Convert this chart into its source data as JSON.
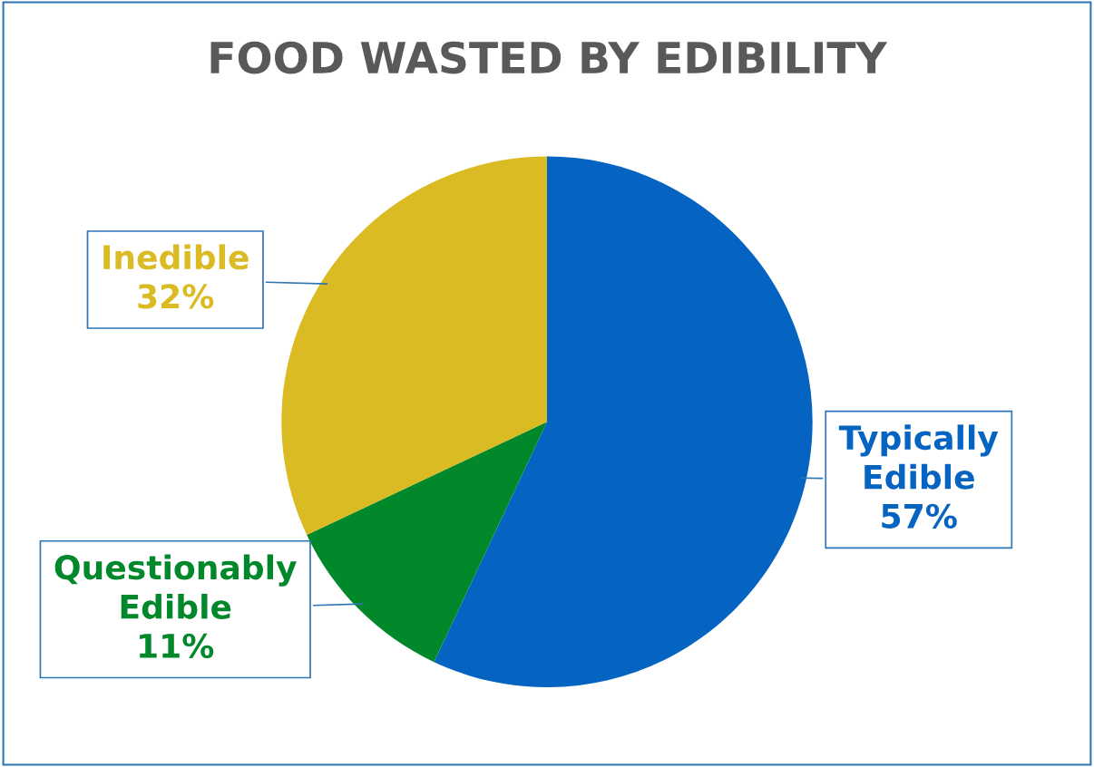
{
  "chart_data": {
    "type": "pie",
    "title": "FOOD WASTED BY EDIBILITY",
    "categories": [
      "Typically Edible",
      "Questionably Edible",
      "Inedible"
    ],
    "values": [
      57,
      11,
      32
    ],
    "value_labels": [
      "57%",
      "11%",
      "32%"
    ],
    "colors": [
      "#0563c1",
      "#00882b",
      "#dbbb24"
    ],
    "legend": false
  }
}
